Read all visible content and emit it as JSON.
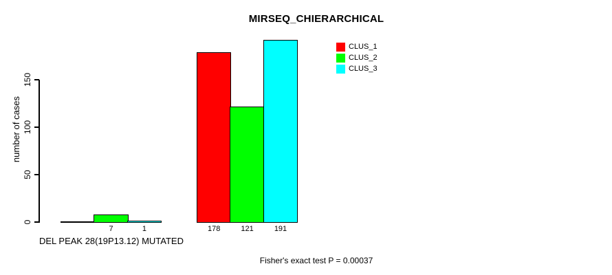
{
  "chart_data": {
    "type": "bar",
    "title": "MIRSEQ_CHIERARCHICAL",
    "ylabel": "number of cases",
    "xlabel": "DEL PEAK 28(19P13.12) MUTATED",
    "footnote": "Fisher's exact test P = 0.00037",
    "yticks": [
      0,
      50,
      100,
      150
    ],
    "ylim": [
      0,
      150
    ],
    "grid": false,
    "legend_position": "top-right",
    "legend": [
      {
        "label": "CLUS_1",
        "color": "#FF0000"
      },
      {
        "label": "CLUS_2",
        "color": "#00FF00"
      },
      {
        "label": "CLUS_3",
        "color": "#00FFFF"
      }
    ],
    "bar_colors": [
      "#FF0000",
      "#00FF00",
      "#00FFFF"
    ],
    "groups": [
      {
        "values": [
          0,
          7,
          1
        ],
        "bar_labels": [
          "",
          "7",
          "1"
        ]
      },
      {
        "values": [
          178,
          121,
          191
        ],
        "bar_labels": [
          "178",
          "121",
          "191"
        ]
      }
    ]
  }
}
